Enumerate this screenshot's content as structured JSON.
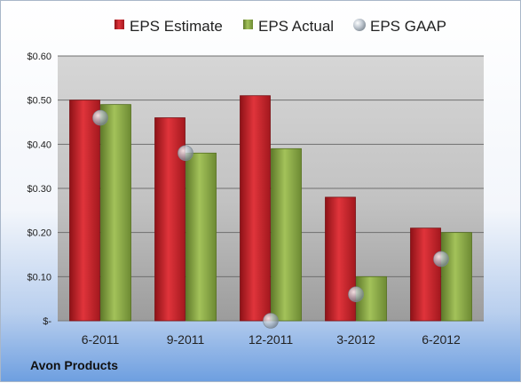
{
  "company": "Avon Products",
  "colors": {
    "estimate": "#c9222a",
    "actual": "#8fad4a",
    "gaap": "#a9b3bd"
  },
  "chart_data": {
    "type": "bar",
    "categories": [
      "6-2011",
      "9-2011",
      "12-2011",
      "3-2012",
      "6-2012"
    ],
    "series": [
      {
        "name": "EPS Estimate",
        "values": [
          0.5,
          0.46,
          0.51,
          0.28,
          0.21
        ]
      },
      {
        "name": "EPS Actual",
        "values": [
          0.49,
          0.38,
          0.39,
          0.1,
          0.2
        ]
      },
      {
        "name": "EPS GAAP",
        "type": "scatter",
        "values": [
          0.46,
          0.38,
          0.0,
          0.06,
          0.14
        ]
      }
    ],
    "ylim": [
      0,
      0.6
    ],
    "yticks": [
      0,
      0.1,
      0.2,
      0.3,
      0.4,
      0.5,
      0.6
    ],
    "ytick_labels": [
      "$-",
      "$0.10",
      "$0.20",
      "$0.30",
      "$0.40",
      "$0.50",
      "$0.60"
    ],
    "grid": true,
    "legend": "top"
  }
}
